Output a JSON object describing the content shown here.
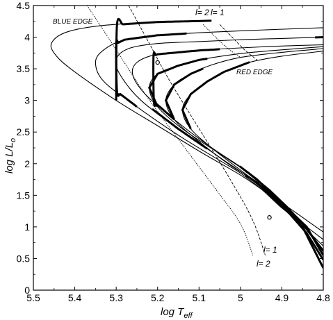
{
  "chart_data": {
    "type": "line",
    "title": "",
    "xlabel_main": "log T",
    "xlabel_sub": "eff",
    "ylabel_main": "log L/L",
    "ylabel_sub": "o",
    "xlim": [
      5.5,
      4.8
    ],
    "ylim": [
      0,
      4.5
    ],
    "x_ticks": [
      5.5,
      5.4,
      5.3,
      5.2,
      5.1,
      5.0,
      4.9,
      4.8
    ],
    "x_tick_labels": [
      "5.5",
      "5.4",
      "5.3",
      "5.2",
      "5.1",
      "5",
      "4.9",
      "4.8"
    ],
    "y_ticks": [
      0,
      0.5,
      1,
      1.5,
      2,
      2.5,
      3,
      3.5,
      4,
      4.5
    ],
    "y_tick_labels": [
      "0",
      "0.5",
      "1",
      "1.5",
      "2",
      "2.5",
      "3",
      "3.5",
      "4",
      "4.5"
    ],
    "grid": false,
    "tracks": [
      {
        "points": [
          [
            5.07,
            4.26
          ],
          [
            5.2,
            4.24
          ],
          [
            5.34,
            4.18
          ],
          [
            5.42,
            4.08
          ],
          [
            5.455,
            3.92
          ],
          [
            5.45,
            3.75
          ],
          [
            5.41,
            3.5
          ],
          [
            5.3,
            3.0
          ],
          [
            5.2,
            2.6
          ],
          [
            5.1,
            2.2
          ],
          [
            5.0,
            1.82
          ],
          [
            4.95,
            1.6
          ],
          [
            4.9,
            1.38
          ],
          [
            4.85,
            1.15
          ],
          [
            4.8,
            0.92
          ]
        ],
        "unstable": [
          [
            5.07,
            5.3
          ]
        ]
      },
      {
        "points": [
          [
            4.8,
            4.15
          ],
          [
            5.0,
            4.1
          ],
          [
            5.1,
            4.07
          ],
          [
            5.2,
            4.03
          ],
          [
            5.28,
            3.96
          ],
          [
            5.33,
            3.8
          ],
          [
            5.35,
            3.6
          ],
          [
            5.33,
            3.3
          ],
          [
            5.25,
            2.9
          ],
          [
            5.15,
            2.45
          ],
          [
            5.05,
            2.05
          ],
          [
            5.0,
            1.85
          ],
          [
            4.95,
            1.6
          ],
          [
            4.9,
            1.3
          ],
          [
            4.85,
            1.05
          ],
          [
            4.8,
            0.8
          ]
        ],
        "unstable": [
          [
            5.13,
            5.3
          ]
        ]
      },
      {
        "points": [
          [
            4.8,
            4.0
          ],
          [
            4.9,
            3.98
          ],
          [
            5.0,
            3.96
          ],
          [
            5.1,
            3.93
          ],
          [
            5.2,
            3.9
          ],
          [
            5.27,
            3.82
          ],
          [
            5.3,
            3.65
          ],
          [
            5.29,
            3.4
          ],
          [
            5.24,
            3.0
          ],
          [
            5.15,
            2.55
          ],
          [
            5.05,
            2.1
          ],
          [
            4.98,
            1.78
          ],
          [
            4.93,
            1.5
          ],
          [
            4.88,
            1.2
          ],
          [
            4.84,
            0.95
          ],
          [
            4.8,
            0.7
          ]
        ],
        "unstable": [
          [
            4.8,
            4.82
          ],
          [
            5.08,
            5.22
          ]
        ]
      },
      {
        "points": [
          [
            4.8,
            3.88
          ],
          [
            4.9,
            3.86
          ],
          [
            5.0,
            3.83
          ],
          [
            5.1,
            3.79
          ],
          [
            5.2,
            3.73
          ],
          [
            5.25,
            3.6
          ],
          [
            5.26,
            3.4
          ],
          [
            5.23,
            3.1
          ],
          [
            5.16,
            2.7
          ],
          [
            5.08,
            2.3
          ],
          [
            5.0,
            1.95
          ],
          [
            4.96,
            1.75
          ],
          [
            4.92,
            1.5
          ],
          [
            4.88,
            1.25
          ],
          [
            4.84,
            1.0
          ],
          [
            4.8,
            0.55
          ]
        ],
        "unstable": [
          [
            5.05,
            5.21
          ],
          [
            5.0,
            4.8
          ]
        ]
      },
      {
        "points": [
          [
            4.8,
            3.85
          ],
          [
            4.9,
            3.8
          ],
          [
            5.0,
            3.74
          ],
          [
            5.1,
            3.64
          ],
          [
            5.15,
            3.55
          ],
          [
            5.2,
            3.42
          ],
          [
            5.22,
            3.2
          ],
          [
            5.2,
            2.9
          ],
          [
            5.14,
            2.55
          ],
          [
            5.06,
            2.2
          ],
          [
            4.98,
            1.85
          ],
          [
            4.93,
            1.58
          ],
          [
            4.89,
            1.33
          ],
          [
            4.85,
            1.05
          ],
          [
            4.8,
            0.62
          ]
        ],
        "unstable": [
          [
            5.08,
            5.225
          ],
          [
            4.99,
            4.8
          ]
        ]
      },
      {
        "points": [
          [
            4.8,
            3.82
          ],
          [
            4.9,
            3.76
          ],
          [
            5.0,
            3.68
          ],
          [
            5.07,
            3.56
          ],
          [
            5.12,
            3.42
          ],
          [
            5.16,
            3.25
          ],
          [
            5.18,
            3.0
          ],
          [
            5.16,
            2.7
          ],
          [
            5.1,
            2.35
          ],
          [
            5.03,
            2.0
          ],
          [
            4.96,
            1.7
          ],
          [
            4.92,
            1.45
          ],
          [
            4.88,
            1.2
          ],
          [
            4.84,
            0.9
          ],
          [
            4.8,
            0.48
          ]
        ],
        "unstable": [
          [
            5.09,
            5.185
          ],
          [
            4.99,
            4.8
          ]
        ]
      },
      {
        "points": [
          [
            4.8,
            3.78
          ],
          [
            4.9,
            3.7
          ],
          [
            4.98,
            3.6
          ],
          [
            5.04,
            3.45
          ],
          [
            5.08,
            3.3
          ],
          [
            5.12,
            3.1
          ],
          [
            5.14,
            2.85
          ],
          [
            5.12,
            2.55
          ],
          [
            5.06,
            2.2
          ],
          [
            4.99,
            1.85
          ],
          [
            4.93,
            1.55
          ],
          [
            4.89,
            1.3
          ],
          [
            4.85,
            1.0
          ],
          [
            4.8,
            0.35
          ]
        ],
        "unstable": [
          [
            4.98,
            5.14
          ],
          [
            4.95,
            4.8
          ]
        ]
      }
    ],
    "instability_strips": [
      {
        "name": "l= 1",
        "edge": "blue",
        "points": [
          [
            5.27,
            4.5
          ],
          [
            5.22,
            3.9
          ],
          [
            5.17,
            3.3
          ],
          [
            5.09,
            2.45
          ],
          [
            5.02,
            1.7
          ],
          [
            4.97,
            1.1
          ],
          [
            4.94,
            0.55
          ]
        ]
      },
      {
        "name": "l= 2",
        "edge": "blue",
        "points": [
          [
            5.37,
            4.5
          ],
          [
            5.31,
            3.9
          ],
          [
            5.23,
            3.1
          ],
          [
            5.14,
            2.3
          ],
          [
            5.06,
            1.6
          ],
          [
            5.0,
            1.05
          ],
          [
            4.97,
            0.55
          ]
        ]
      },
      {
        "name": "l= 1",
        "edge": "red",
        "points": [
          [
            5.05,
            4.2
          ],
          [
            5.02,
            4.0
          ],
          [
            4.99,
            3.8
          ],
          [
            4.96,
            3.64
          ]
        ]
      },
      {
        "name": "l= 2",
        "edge": "red",
        "points": [
          [
            5.09,
            4.2
          ],
          [
            5.06,
            4.0
          ],
          [
            5.03,
            3.82
          ],
          [
            5.0,
            3.68
          ]
        ]
      }
    ],
    "markers": [
      {
        "x": 5.2,
        "y": 3.6
      },
      {
        "x": 4.93,
        "y": 1.15
      }
    ],
    "annotations": {
      "blue_edge": "BLUE EDGE",
      "red_edge": "RED EDGE",
      "l2_top": "l= 2",
      "l1_top": "l= 1",
      "l1_bottom": "l= 1",
      "l2_bottom": "l= 2"
    }
  }
}
